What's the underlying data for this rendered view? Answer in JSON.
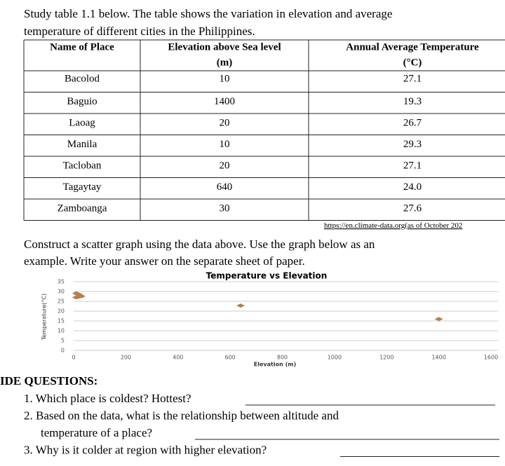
{
  "intro": [
    "Study table 1.1 below. The table shows the variation in elevation and average",
    "temperature of different cities in the Philippines."
  ],
  "table": {
    "header": [
      [
        "Name of Place"
      ],
      [
        "Elevation above Sea level",
        "(m)"
      ],
      [
        "Annual Average Temperature",
        "(°C)"
      ]
    ],
    "rows": [
      [
        "Bacolod",
        "10",
        "27.1"
      ],
      [
        "Baguio",
        "1400",
        "19.3"
      ],
      [
        "Laoag",
        "20",
        "26.7"
      ],
      [
        "Manila",
        "10",
        "29.3"
      ],
      [
        "Tacloban",
        "20",
        "27.1"
      ],
      [
        "Tagaytay",
        "640",
        "24.0"
      ],
      [
        "Zamboanga",
        "30",
        "27.6"
      ]
    ]
  },
  "source": "https://en.climate-data.org(as of October 202",
  "instruction": [
    "Construct a scatter graph using the data above. Use the graph below as an",
    "example. Write your answer on the separate sheet of paper."
  ],
  "chart_data": {
    "type": "scatter",
    "title": "Temperature vs Elevation",
    "x_label": "Elevation (m)",
    "y_label": "Temperature(°C)",
    "x": [
      10,
      20,
      20,
      10,
      30,
      640,
      1400
    ],
    "values": [
      27,
      27.3,
      28.5,
      29,
      27.6,
      22.8,
      16
    ],
    "color": "#b5804f",
    "xlim": [
      0,
      1600
    ],
    "xticks": [
      0,
      200,
      400,
      600,
      800,
      1000,
      1200,
      1400,
      1600
    ],
    "ylim": [
      0,
      35
    ],
    "yticks": [
      0,
      5,
      10,
      15,
      20,
      25,
      30,
      35
    ],
    "grid": true
  },
  "questions": {
    "heading": "IDE QUESTIONS:",
    "items": [
      [
        "1. Which place is coldest? Hottest?"
      ],
      [
        "2. Based on the data, what is the relationship between altitude and",
        "temperature of a place?"
      ],
      [
        "3. Why is it colder at region with higher elevation?"
      ]
    ]
  }
}
